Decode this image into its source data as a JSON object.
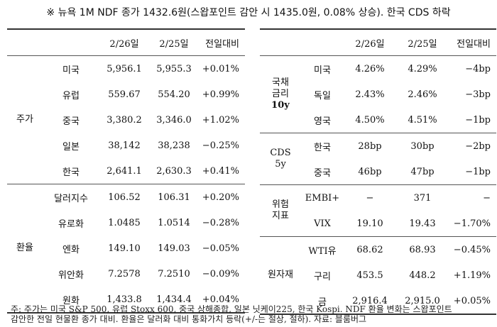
{
  "title": "※ 뉴욕 1M NDF 종가 1432.6원(스왑포인트 감안 시 1435.0원, 0.08% 상승). 한국 CDS 하락",
  "left": {
    "headers": [
      "",
      "",
      "2/26일",
      "2/25일",
      "전일대비"
    ],
    "groups": [
      {
        "category": "주가",
        "rows": [
          {
            "name": "미국",
            "d1": "5,956.1",
            "d2": "5,955.3",
            "chg": "+0.01%"
          },
          {
            "name": "유럽",
            "d1": "559.67",
            "d2": "554.20",
            "chg": "+0.99%"
          },
          {
            "name": "중국",
            "d1": "3,380.2",
            "d2": "3,346.0",
            "chg": "+1.02%"
          },
          {
            "name": "일본",
            "d1": "38,142",
            "d2": "38,238",
            "chg": "−0.25%"
          },
          {
            "name": "한국",
            "d1": "2,641.1",
            "d2": "2,630.3",
            "chg": "+0.41%"
          }
        ]
      },
      {
        "category": "환율",
        "rows": [
          {
            "name": "달러지수",
            "d1": "106.52",
            "d2": "106.31",
            "chg": "+0.20%"
          },
          {
            "name": "유로화",
            "d1": "1.0485",
            "d2": "1.0514",
            "chg": "−0.28%"
          },
          {
            "name": "엔화",
            "d1": "149.10",
            "d2": "149.03",
            "chg": "−0.05%"
          },
          {
            "name": "위안화",
            "d1": "7.2578",
            "d2": "7.2510",
            "chg": "−0.09%"
          },
          {
            "name": "원화",
            "d1": "1,433.8",
            "d2": "1,434.4",
            "chg": "+0.04%"
          }
        ]
      }
    ]
  },
  "right": {
    "headers": [
      "",
      "",
      "2/26일",
      "2/25일",
      "전일대비"
    ],
    "groups": [
      {
        "category_lines": [
          "국채",
          "금리",
          "10y"
        ],
        "rows": [
          {
            "name": "미국",
            "d1": "4.26%",
            "d2": "4.29%",
            "chg": "−4bp"
          },
          {
            "name": "독일",
            "d1": "2.43%",
            "d2": "2.46%",
            "chg": "−3bp"
          },
          {
            "name": "영국",
            "d1": "4.50%",
            "d2": "4.51%",
            "chg": "−1bp"
          }
        ]
      },
      {
        "category_lines": [
          "CDS",
          "5y"
        ],
        "rows": [
          {
            "name": "한국",
            "d1": "28bp",
            "d2": "30bp",
            "chg": "−2bp"
          },
          {
            "name": "중국",
            "d1": "46bp",
            "d2": "47bp",
            "chg": "−1bp"
          }
        ]
      },
      {
        "category_lines": [
          "위험",
          "지표"
        ],
        "rows": [
          {
            "name": "EMBI+",
            "d1": "−",
            "d2": "371",
            "chg": "−"
          },
          {
            "name": "VIX",
            "d1": "19.10",
            "d2": "19.43",
            "chg": "−1.70%"
          }
        ]
      },
      {
        "category_lines": [
          "원자재"
        ],
        "rows": [
          {
            "name": "WTI유",
            "d1": "68.62",
            "d2": "68.93",
            "chg": "−0.45%"
          },
          {
            "name": "구리",
            "d1": "453.5",
            "d2": "448.2",
            "chg": "+1.19%"
          },
          {
            "name": "금",
            "d1": "2,916.4",
            "d2": "2,915.0",
            "chg": "+0.05%"
          }
        ]
      }
    ]
  },
  "note": {
    "line1": "주: 주가는 미국 S&P 500, 유럽 Stoxx 600, 중국 상해종합, 일본 닛케이225, 한국 Kospi. NDF 환율 변화는 스왑포인트",
    "line2": "감안한 전일 현물환 종가 대비. 환율은 달러화 대비 통화가치 등락(+/-는 절상, 절하). 자료: 블룸버그"
  }
}
